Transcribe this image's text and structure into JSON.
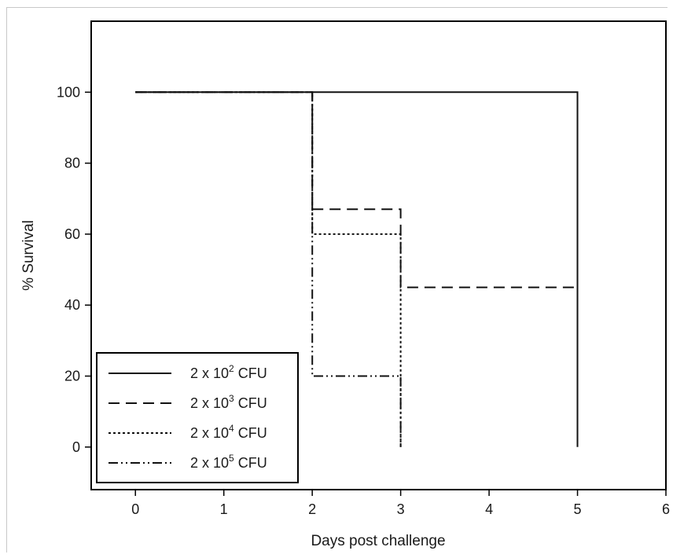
{
  "chart_data": {
    "type": "line",
    "step": true,
    "title": "",
    "xlabel": "Days post challenge",
    "ylabel": "% Survival",
    "xlim": [
      -0.5,
      6
    ],
    "ylim": [
      -12,
      120
    ],
    "xticks": [
      0,
      1,
      2,
      3,
      4,
      5,
      6
    ],
    "yticks": [
      0,
      20,
      40,
      60,
      80,
      100
    ],
    "grid": false,
    "legend_position": "bottom-left",
    "series": [
      {
        "name": "2 x 10",
        "exponent": "2",
        "unit": "CFU",
        "style": "solid",
        "x": [
          0,
          2,
          5,
          5
        ],
        "y": [
          100,
          100,
          100,
          0
        ]
      },
      {
        "name": "2 x 10",
        "exponent": "3",
        "unit": "CFU",
        "style": "dashed",
        "x": [
          0,
          2,
          2,
          3,
          3,
          5
        ],
        "y": [
          100,
          100,
          67,
          67,
          45,
          45
        ]
      },
      {
        "name": "2 x 10",
        "exponent": "4",
        "unit": "CFU",
        "style": "dotted",
        "x": [
          0,
          2,
          2,
          3,
          3
        ],
        "y": [
          100,
          100,
          60,
          60,
          0
        ]
      },
      {
        "name": "2 x 10",
        "exponent": "5",
        "unit": "CFU",
        "style": "dashdotdot",
        "x": [
          0,
          2,
          2,
          3,
          3
        ],
        "y": [
          100,
          100,
          20,
          20,
          0
        ]
      }
    ]
  }
}
